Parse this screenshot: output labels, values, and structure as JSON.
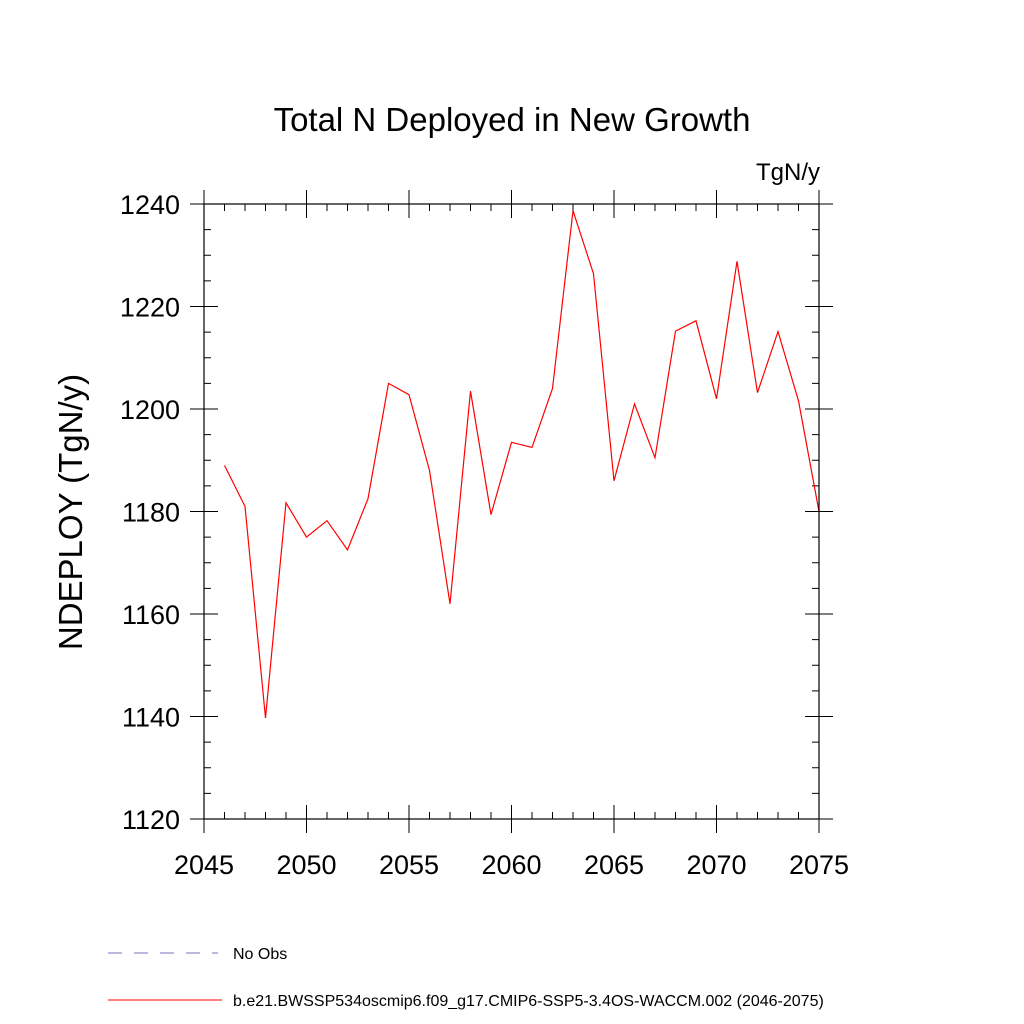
{
  "chart_data": {
    "type": "line",
    "title": "Total N Deployed in New Growth",
    "units_label": "TgN/y",
    "ylabel": "NDEPLOY  (TgN/y)",
    "xlabel": "",
    "xlim": [
      2045,
      2075
    ],
    "ylim": [
      1120,
      1240
    ],
    "x_ticks": [
      2045,
      2050,
      2055,
      2060,
      2065,
      2070,
      2075
    ],
    "y_ticks": [
      1120,
      1140,
      1160,
      1180,
      1200,
      1220,
      1240
    ],
    "x_minor_step": 1,
    "y_minor_step": 5,
    "grid": false,
    "series": [
      {
        "name": "b.e21.BWSSP534oscmip6.f09_g17.CMIP6-SSP5-3.4OS-WACCM.002 (2046-2075)",
        "color": "#ff0000",
        "x": [
          2046,
          2047,
          2048,
          2049,
          2050,
          2051,
          2052,
          2053,
          2054,
          2055,
          2056,
          2057,
          2058,
          2059,
          2060,
          2061,
          2062,
          2063,
          2064,
          2065,
          2066,
          2067,
          2068,
          2069,
          2070,
          2071,
          2072,
          2073,
          2074,
          2075
        ],
        "values": [
          1189,
          1181,
          1139.7,
          1181.7,
          1175,
          1178.2,
          1172.5,
          1182.5,
          1205,
          1202.8,
          1188,
          1162,
          1203.5,
          1179.4,
          1193.5,
          1192.5,
          1204,
          1238.7,
          1226.4,
          1186,
          1201,
          1190.5,
          1215.2,
          1217.2,
          1202,
          1228.8,
          1203.2,
          1215.1,
          1201.6,
          1180
        ]
      }
    ],
    "legend": {
      "placement": "bottom",
      "entries": [
        {
          "label": "No Obs",
          "color": "#7a6fbf",
          "style": "dashed"
        },
        {
          "label": "b.e21.BWSSP534oscmip6.f09_g17.CMIP6-SSP5-3.4OS-WACCM.002 (2046-2075)",
          "color": "#ff0000",
          "style": "solid"
        }
      ]
    }
  }
}
